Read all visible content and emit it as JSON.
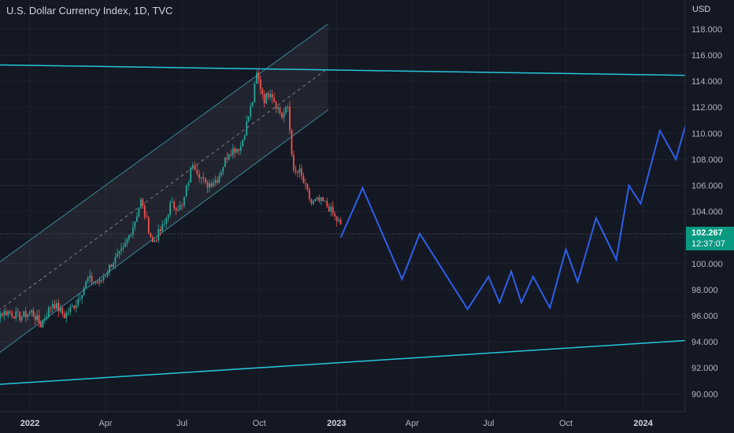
{
  "header": {
    "title": "U.S. Dollar Currency Index, 1D, TVC",
    "currency": "USD"
  },
  "price_tag": {
    "value": "102.267",
    "countdown": "12:37:07",
    "color": "#089981"
  },
  "colors": {
    "background": "#141823",
    "trendline": "#26c6da",
    "projection": "#2f5fe8",
    "channel": "#4dd0e1",
    "candle_up": "#26a69a",
    "candle_down": "#ef5350"
  },
  "chart_data": {
    "type": "line",
    "title": "U.S. Dollar Currency Index, 1D, TVC",
    "y_axis": {
      "position": "right",
      "unit": "USD",
      "ticks": [
        "90.000",
        "92.000",
        "94.000",
        "96.000",
        "98.000",
        "100.000",
        "102.000",
        "104.000",
        "106.000",
        "108.000",
        "110.000",
        "112.000",
        "114.000",
        "116.000",
        "118.000"
      ],
      "range": [
        88.5,
        120.5
      ]
    },
    "x_axis": {
      "ticks": [
        {
          "label": "2022",
          "bold": true,
          "date": "2022-01-01"
        },
        {
          "label": "Apr",
          "bold": false,
          "date": "2022-04-01"
        },
        {
          "label": "Jul",
          "bold": false,
          "date": "2022-07-01"
        },
        {
          "label": "Oct",
          "bold": false,
          "date": "2022-10-01"
        },
        {
          "label": "2023",
          "bold": true,
          "date": "2023-01-01"
        },
        {
          "label": "Apr",
          "bold": false,
          "date": "2023-04-01"
        },
        {
          "label": "Jul",
          "bold": false,
          "date": "2023-07-01"
        },
        {
          "label": "Oct",
          "bold": false,
          "date": "2023-10-01"
        },
        {
          "label": "2024",
          "bold": true,
          "date": "2024-01-01"
        }
      ]
    },
    "grid": true,
    "series": [
      {
        "style": "candlestick",
        "x": [
          "2021-10-25",
          "2021-11-08",
          "2021-11-22",
          "2021-12-06",
          "2021-12-20",
          "2022-01-03",
          "2022-01-14",
          "2022-01-28",
          "2022-02-11",
          "2022-02-25",
          "2022-03-11",
          "2022-03-25",
          "2022-04-08",
          "2022-04-22",
          "2022-05-06",
          "2022-05-13",
          "2022-05-27",
          "2022-06-10",
          "2022-06-17",
          "2022-07-01",
          "2022-07-14",
          "2022-07-29",
          "2022-08-12",
          "2022-08-26",
          "2022-09-09",
          "2022-09-23",
          "2022-09-28",
          "2022-10-07",
          "2022-10-14",
          "2022-10-21",
          "2022-10-28",
          "2022-11-04",
          "2022-11-11",
          "2022-11-18",
          "2022-11-25",
          "2022-12-02",
          "2022-12-09",
          "2022-12-16",
          "2022-12-23",
          "2022-12-30",
          "2023-01-06"
        ],
        "y": [
          96.2,
          96.5,
          96.1,
          96.3,
          95.9,
          96.3,
          95.3,
          97.0,
          96.0,
          97.0,
          98.8,
          98.5,
          100.0,
          101.0,
          103.3,
          104.8,
          101.6,
          103.0,
          104.5,
          104.3,
          107.8,
          106.0,
          106.5,
          108.6,
          109.0,
          112.5,
          114.5,
          112.6,
          113.3,
          112.2,
          111.3,
          112.0,
          106.9,
          107.0,
          105.8,
          104.6,
          104.8,
          104.7,
          104.3,
          103.5,
          103.0
        ]
      },
      {
        "name": "",
        "style": "projection",
        "x": [
          "2023-01-06",
          "2023-02-01",
          "2023-03-20",
          "2023-04-10",
          "2023-06-06",
          "2023-07-01",
          "2023-07-14",
          "2023-07-28",
          "2023-08-09",
          "2023-08-23",
          "2023-09-12",
          "2023-10-01",
          "2023-10-15",
          "2023-11-06",
          "2023-11-30",
          "2023-12-15",
          "2023-12-29",
          "2024-01-21",
          "2024-02-09",
          "2024-03-07"
        ],
        "y": [
          102.0,
          105.8,
          98.8,
          102.3,
          96.5,
          99.0,
          97.0,
          99.4,
          97.0,
          99.0,
          96.6,
          101.1,
          98.6,
          103.5,
          100.3,
          106.0,
          104.6,
          110.2,
          108.0,
          114.2
        ]
      },
      {
        "name": "",
        "style": "trendline",
        "x": [
          "2021-10-01",
          "2024-04-10"
        ],
        "y": [
          115.3,
          114.4
        ]
      },
      {
        "name": "",
        "style": "trendline",
        "x": [
          "2021-10-01",
          "2024-04-10"
        ],
        "y": [
          90.5,
          94.3
        ]
      }
    ],
    "channel": {
      "x": [
        "2021-10-01",
        "2022-12-22"
      ],
      "upper": [
        97.5,
        118.4
      ],
      "middle": [
        93.8,
        115.0
      ],
      "lower": [
        90.5,
        111.8
      ]
    }
  }
}
